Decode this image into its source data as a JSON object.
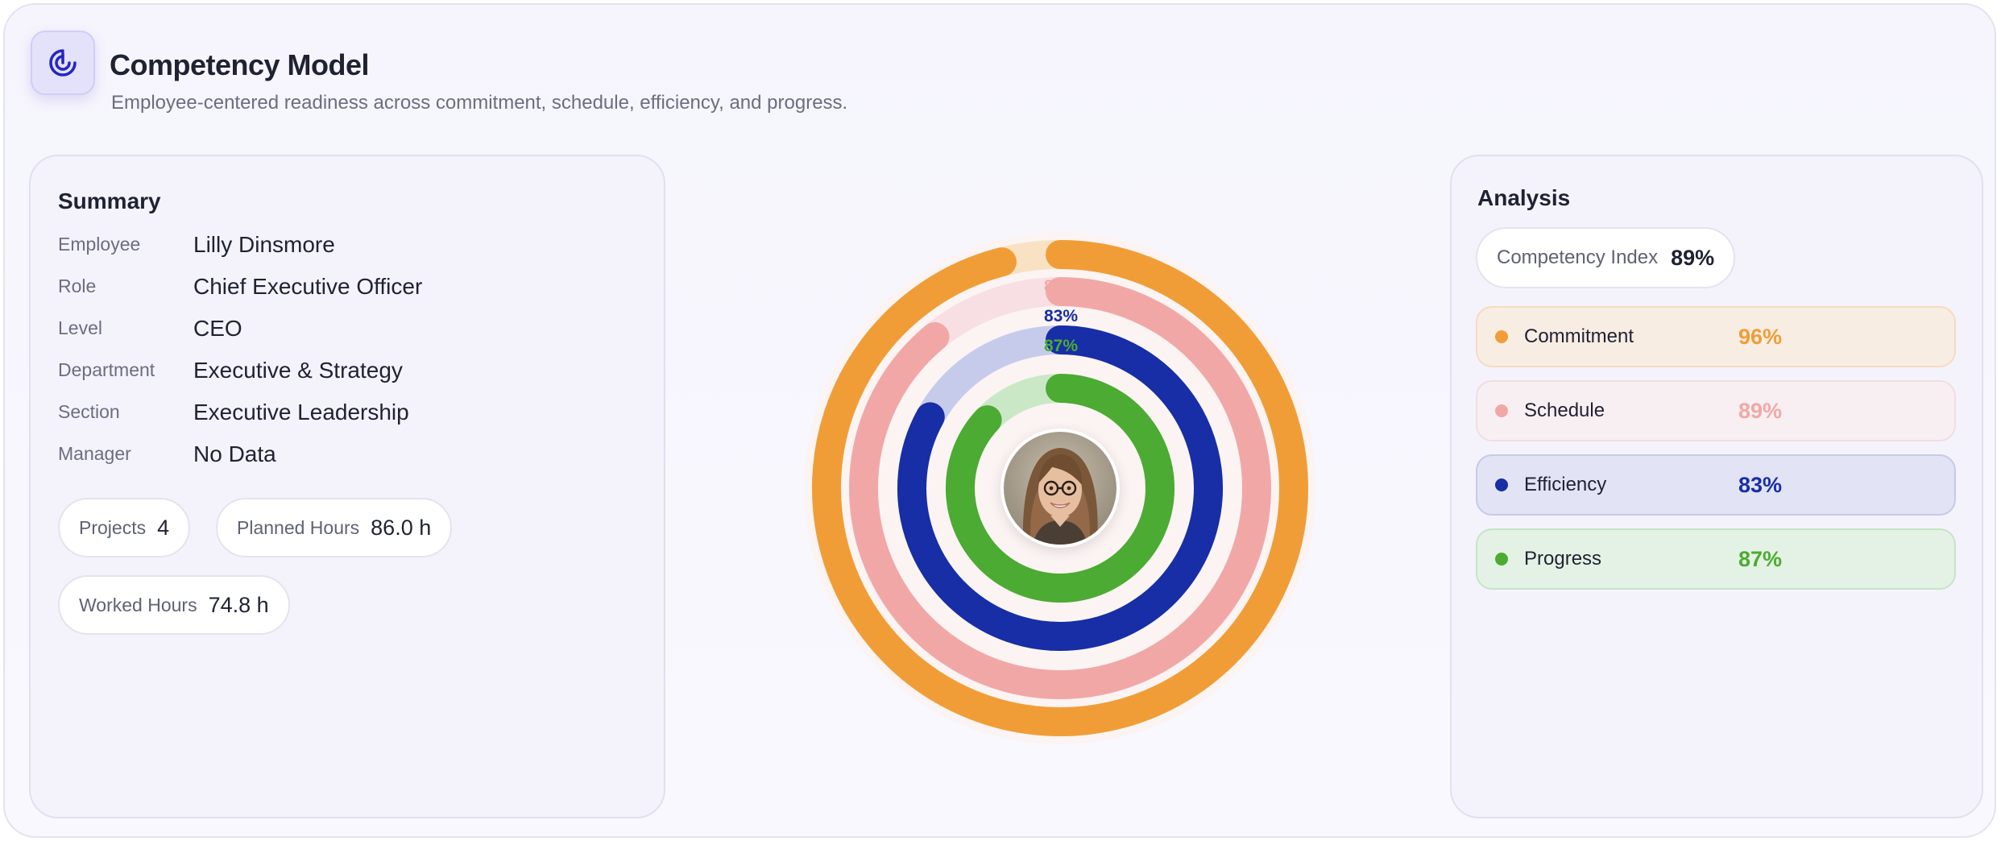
{
  "header": {
    "title": "Competency Model",
    "subtitle": "Employee-centered readiness across commitment, schedule, efficiency, and progress.",
    "logo_icon": "radar-target-icon"
  },
  "summary": {
    "title": "Summary",
    "fields": [
      {
        "label": "Employee",
        "value": "Lilly Dinsmore"
      },
      {
        "label": "Role",
        "value": "Chief Executive Officer"
      },
      {
        "label": "Level",
        "value": "CEO"
      },
      {
        "label": "Department",
        "value": "Executive & Strategy"
      },
      {
        "label": "Section",
        "value": "Executive Leadership"
      },
      {
        "label": "Manager",
        "value": "No Data"
      }
    ],
    "stats": [
      {
        "label": "Projects",
        "value": "4"
      },
      {
        "label": "Planned Hours",
        "value": "86.0 h"
      },
      {
        "label": "Worked Hours",
        "value": "74.8 h"
      }
    ]
  },
  "analysis": {
    "title": "Analysis",
    "index_label": "Competency Index",
    "index_value": "89%",
    "metrics": [
      {
        "name": "Commitment",
        "value": "96%",
        "color": "#f19d37",
        "bg": "#f8ede3",
        "border": "#f3dcc0"
      },
      {
        "name": "Schedule",
        "value": "89%",
        "color": "#f2a7a7",
        "bg": "#f8eff2",
        "border": "#f1dde2"
      },
      {
        "name": "Efficiency",
        "value": "83%",
        "color": "#172ea6",
        "bg": "#e2e3f4",
        "border": "#c6cae8"
      },
      {
        "name": "Progress",
        "value": "87%",
        "color": "#4cab32",
        "bg": "#e3f2e4",
        "border": "#c6e4c7"
      }
    ]
  },
  "chart_data": {
    "type": "radial-bar",
    "categories": [
      "Commitment",
      "Schedule",
      "Efficiency",
      "Progress"
    ],
    "values": [
      96,
      89,
      83,
      87
    ],
    "value_labels": [
      "",
      "89%",
      "83%",
      "87%"
    ],
    "ylim": [
      0,
      100
    ],
    "colors": [
      "#f19d37",
      "#f2a7a7",
      "#172ea6",
      "#4cab32"
    ],
    "track_colors": [
      "#f9e2c3",
      "#f7dfe3",
      "#c7cbeb",
      "#cbe8c6"
    ]
  }
}
